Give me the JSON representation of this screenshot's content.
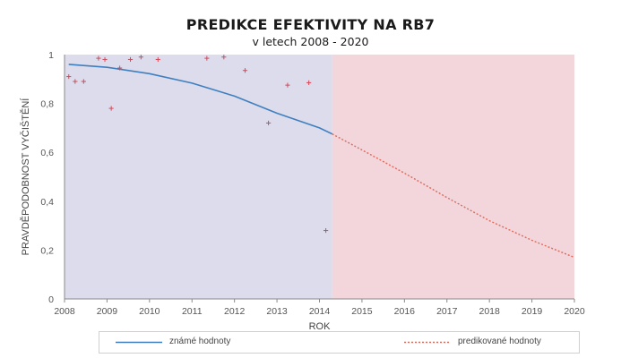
{
  "chart_data": {
    "type": "line",
    "title": "PREDIKCE EFEKTIVITY NA RB7",
    "subtitle": "v letech 2008 - 2020",
    "xlabel": "ROK",
    "ylabel": "PRAVDĚPODOBNOST VYČIŠTĚNÍ",
    "xlim": [
      2008,
      2020
    ],
    "ylim": [
      0,
      1
    ],
    "x_ticks": [
      "2008",
      "2009",
      "2010",
      "2011",
      "2012",
      "2013",
      "2014",
      "2015",
      "2016",
      "2017",
      "2018",
      "2019",
      "2020"
    ],
    "y_ticks": [
      "0",
      "0,2",
      "0,4",
      "0,6",
      "0,8",
      "1"
    ],
    "split_year": 2014.3,
    "region_colors": {
      "known": "#dcdcec",
      "predicted": "#f2d6dc"
    },
    "scatter_points": [
      {
        "x": 2008.1,
        "y": 0.91
      },
      {
        "x": 2008.25,
        "y": 0.89
      },
      {
        "x": 2008.45,
        "y": 0.89
      },
      {
        "x": 2008.8,
        "y": 0.985
      },
      {
        "x": 2008.95,
        "y": 0.98
      },
      {
        "x": 2009.1,
        "y": 0.78
      },
      {
        "x": 2009.3,
        "y": 0.945
      },
      {
        "x": 2009.55,
        "y": 0.98
      },
      {
        "x": 2009.8,
        "y": 0.99
      },
      {
        "x": 2010.2,
        "y": 0.98
      },
      {
        "x": 2011.35,
        "y": 0.985
      },
      {
        "x": 2011.75,
        "y": 0.99
      },
      {
        "x": 2012.25,
        "y": 0.935
      },
      {
        "x": 2012.8,
        "y": 0.72
      },
      {
        "x": 2013.25,
        "y": 0.875
      },
      {
        "x": 2013.75,
        "y": 0.885
      },
      {
        "x": 2014.15,
        "y": 0.28
      }
    ],
    "series": [
      {
        "name": "známé hodnoty",
        "color": "#3f7fbf",
        "style": "solid",
        "x": [
          2008.1,
          2009,
          2010,
          2011,
          2012,
          2013,
          2014,
          2014.3
        ],
        "values": [
          0.96,
          0.948,
          0.922,
          0.883,
          0.83,
          0.76,
          0.7,
          0.675
        ]
      },
      {
        "name": "predikované hodnoty",
        "color": "#e06a5a",
        "style": "dotted",
        "x": [
          2014.3,
          2015,
          2016,
          2017,
          2018,
          2019,
          2020
        ],
        "values": [
          0.675,
          0.61,
          0.515,
          0.415,
          0.32,
          0.24,
          0.17
        ]
      }
    ],
    "legend": [
      {
        "label": "známé hodnoty",
        "style": "solid",
        "color": "#3f7fbf"
      },
      {
        "label": "predikované hodnoty",
        "style": "dotted",
        "color": "#e06a5a"
      }
    ],
    "legend_position": "bottom",
    "scatter_color": "#d04b5a",
    "grid": false
  }
}
